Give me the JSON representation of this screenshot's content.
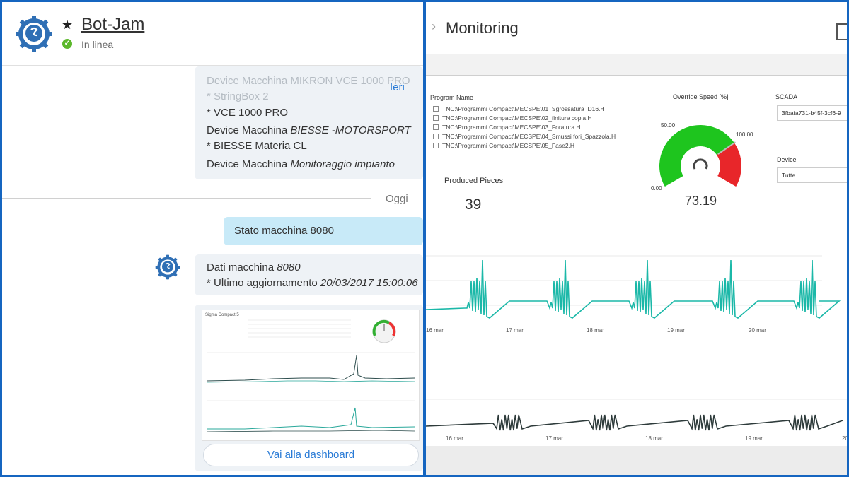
{
  "chat": {
    "bot_name": "Bot-Jam",
    "status": "In linea",
    "faded_lines": [
      "Device Macchina MIKRON VCE 1000 PRO",
      "* StringBox 2"
    ],
    "old_message": [
      {
        "plain": "* VCE 1000 PRO",
        "italic": ""
      },
      {
        "plain": "Device Macchina ",
        "italic": "BIESSE -MOTORSPORT"
      },
      {
        "plain": "* BIESSE Materia CL",
        "italic": ""
      },
      {
        "plain": "Device Macchina ",
        "italic": "Monitoraggio impianto"
      }
    ],
    "yesterday_label": "Ieri",
    "today_label": "Oggi",
    "user_message": "Stato macchina 8080",
    "data_message": {
      "line1_plain": "Dati macchina ",
      "line1_italic": "8080",
      "line2_plain": "* Ultimo aggiornamento ",
      "line2_italic": "20/03/2017 15:00:06"
    },
    "thumbnail_title": "Sigma Compact 5",
    "dashboard_button": "Vai alla dashboard"
  },
  "monitoring": {
    "title": "Monitoring",
    "program_name_label": "Program Name",
    "programs": [
      "TNC:\\Programmi Compact\\MECSPE\\01_Sgrossatura_D16.H",
      "TNC:\\Programmi Compact\\MECSPE\\02_finiture copia.H",
      "TNC:\\Programmi Compact\\MECSPE\\03_Foratura.H",
      "TNC:\\Programmi Compact\\MECSPE\\04_Smussi fori_Spazzola.H",
      "TNC:\\Programmi Compact\\MECSPE\\05_Fase2.H"
    ],
    "produced_pieces_label": "Produced Pieces",
    "produced_pieces_value": "39",
    "override_speed_label": "Override Speed [%]",
    "gauge": {
      "value_text": "73.19",
      "value": 73.19,
      "min_label": "0.00",
      "mid_label": "50.00",
      "max_label": "100.00",
      "green_color": "#1ec51e",
      "red_color": "#e8262a"
    },
    "scada_label": "SCADA",
    "scada_value": "3fbafa731-b45f-3cf6-9",
    "device_label": "Device",
    "device_value": "Tutte",
    "chart1_dates": [
      "16 mar",
      "17 mar",
      "18 mar",
      "19 mar",
      "20 mar"
    ],
    "chart2_dates": [
      "16 mar",
      "17 mar",
      "18 mar",
      "19 mar",
      "20"
    ],
    "chart1_color": "#1bb8a8",
    "chart2_color": "#2e3b3b"
  }
}
